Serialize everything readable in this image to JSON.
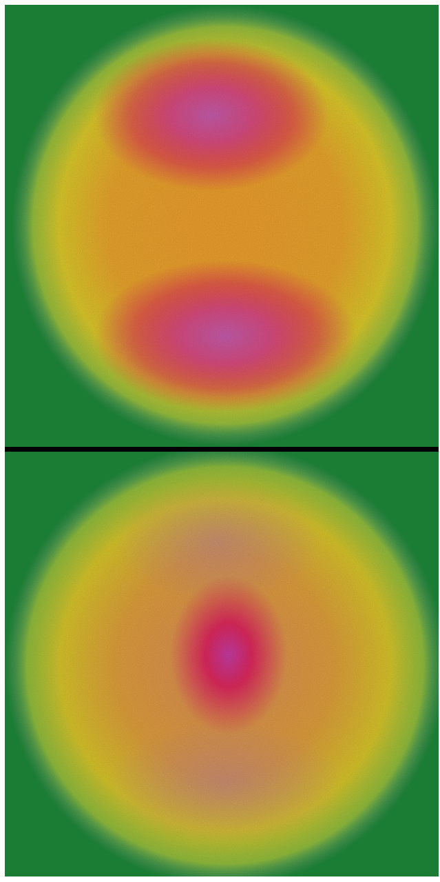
{
  "figure": {
    "panels": [
      {
        "id": "top",
        "description_kind": "speckle-heatmap",
        "pattern": "two-lobe",
        "background_color": "#1b7c34"
      },
      {
        "id": "bottom",
        "description_kind": "speckle-heatmap",
        "pattern": "central-lobe",
        "background_color": "#1b7c34"
      }
    ],
    "colors": {
      "background": "#1b7c34",
      "outer_ring": "#c9d81e",
      "mid": "#e79a2c",
      "hot": "#d8285a",
      "peak": "#c05aa8",
      "divider": "#000000"
    }
  }
}
